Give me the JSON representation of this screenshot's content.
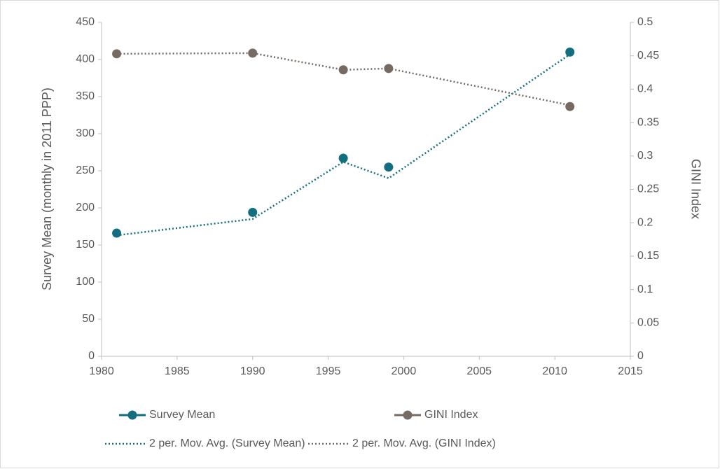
{
  "chart_data": {
    "type": "line",
    "x": [
      1981,
      1990,
      1996,
      1999,
      2011
    ],
    "xlim": [
      1980,
      2015
    ],
    "xticks": [
      1980,
      1985,
      1990,
      1995,
      2000,
      2005,
      2010,
      2015
    ],
    "ylim": [
      0,
      450
    ],
    "yticks": [
      0,
      50,
      100,
      150,
      200,
      250,
      300,
      350,
      400,
      450
    ],
    "y2lim": [
      0,
      0.5
    ],
    "y2ticks": [
      0,
      0.05,
      0.1,
      0.15,
      0.2,
      0.25,
      0.3,
      0.35,
      0.4,
      0.45,
      0.5
    ],
    "ylabel": "Survey Mean (monthly in 2011 PPP)",
    "y2label": "GINI Index",
    "series": [
      {
        "name": "Survey Mean",
        "color": "#136f80",
        "style": "marker",
        "values": [
          166,
          194,
          267,
          255,
          410
        ]
      },
      {
        "name": "GINI Index",
        "color": "#756b63",
        "style": "marker",
        "axis": "y2",
        "values": [
          0.453,
          0.454,
          0.429,
          0.431,
          0.374
        ]
      },
      {
        "name": "2 per. Mov. Avg. (Survey Mean)",
        "color": "#136f80",
        "style": "dotted",
        "values": [
          163,
          185,
          262,
          240,
          407
        ]
      },
      {
        "name": "2 per. Mov. Avg. (GINI Index)",
        "color": "#756b63",
        "style": "dotted",
        "axis": "y2",
        "values": [
          0.453,
          0.454,
          0.429,
          0.431,
          0.376
        ]
      }
    ]
  }
}
